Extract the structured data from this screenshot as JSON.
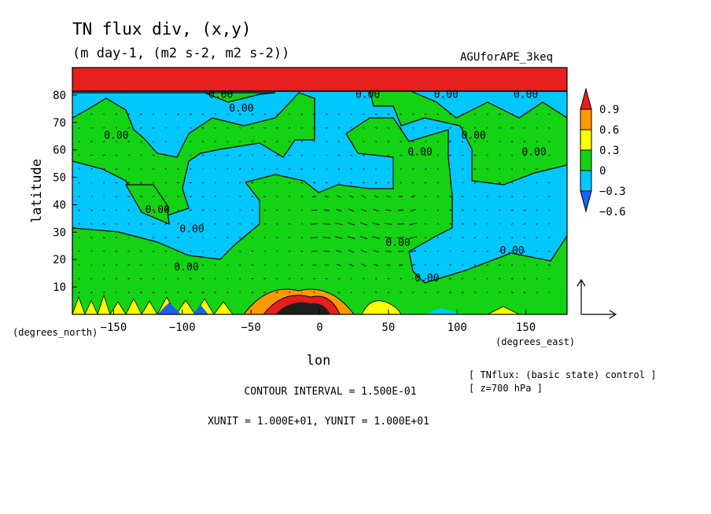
{
  "chart_data": {
    "type": "heatmap",
    "title": "TN flux div, (x,y)",
    "subtitle": "(m day-1, (m2 s-2, m2 s-2))",
    "experiment": "AGUforAPE_3keq",
    "xlabel": "lon",
    "ylabel": "latitude",
    "x_unit_label": "(degrees_east)",
    "y_unit_label": "(degrees_north)",
    "xlim": [
      -180,
      180
    ],
    "ylim": [
      0,
      90
    ],
    "x_ticks": [
      -150,
      -100,
      -50,
      0,
      50,
      100,
      150
    ],
    "y_ticks": [
      10,
      20,
      30,
      40,
      50,
      60,
      70,
      80
    ],
    "contour_interval_text": "CONTOUR INTERVAL = 1.500E-01",
    "vector_unit_text": "XUNIT = 1.000E+01, YUNIT = 1.000E+01",
    "notes": [
      "[ TNflux: (basic state) control ]",
      "[ z=700 hPa ]"
    ],
    "colorbar": {
      "levels": [
        -0.6,
        -0.3,
        0,
        0.3,
        0.6,
        0.9
      ],
      "labels": [
        "0.9",
        "0.6",
        "0.3",
        "0",
        "−0.3",
        "−0.6"
      ],
      "colors": [
        "#1e5ff0",
        "#00c8ff",
        "#14d214",
        "#ffff00",
        "#ff9900",
        "#e61e1e"
      ]
    },
    "contour_labels": [
      {
        "text": "0.00",
        "lon": -72,
        "lat": 79
      },
      {
        "text": "0.00",
        "lon": -57,
        "lat": 74
      },
      {
        "text": "0.00",
        "lon": 35,
        "lat": 79
      },
      {
        "text": "0.00",
        "lon": 92,
        "lat": 79
      },
      {
        "text": "0.00",
        "lon": 150,
        "lat": 79
      },
      {
        "text": "0.00",
        "lon": 73,
        "lat": 58
      },
      {
        "text": "0.00",
        "lon": -148,
        "lat": 64
      },
      {
        "text": "0.00",
        "lon": 112,
        "lat": 64
      },
      {
        "text": "0.00",
        "lon": 156,
        "lat": 58
      },
      {
        "text": "0.00",
        "lon": -118,
        "lat": 37
      },
      {
        "text": "0.00",
        "lon": -93,
        "lat": 30
      },
      {
        "text": "0.00",
        "lon": 140,
        "lat": 22
      },
      {
        "text": "0.00",
        "lon": -97,
        "lat": 16
      },
      {
        "text": "0.00",
        "lon": 78,
        "lat": 12
      },
      {
        "text": "0.00",
        "lon": 57,
        "lat": 25
      }
    ]
  }
}
